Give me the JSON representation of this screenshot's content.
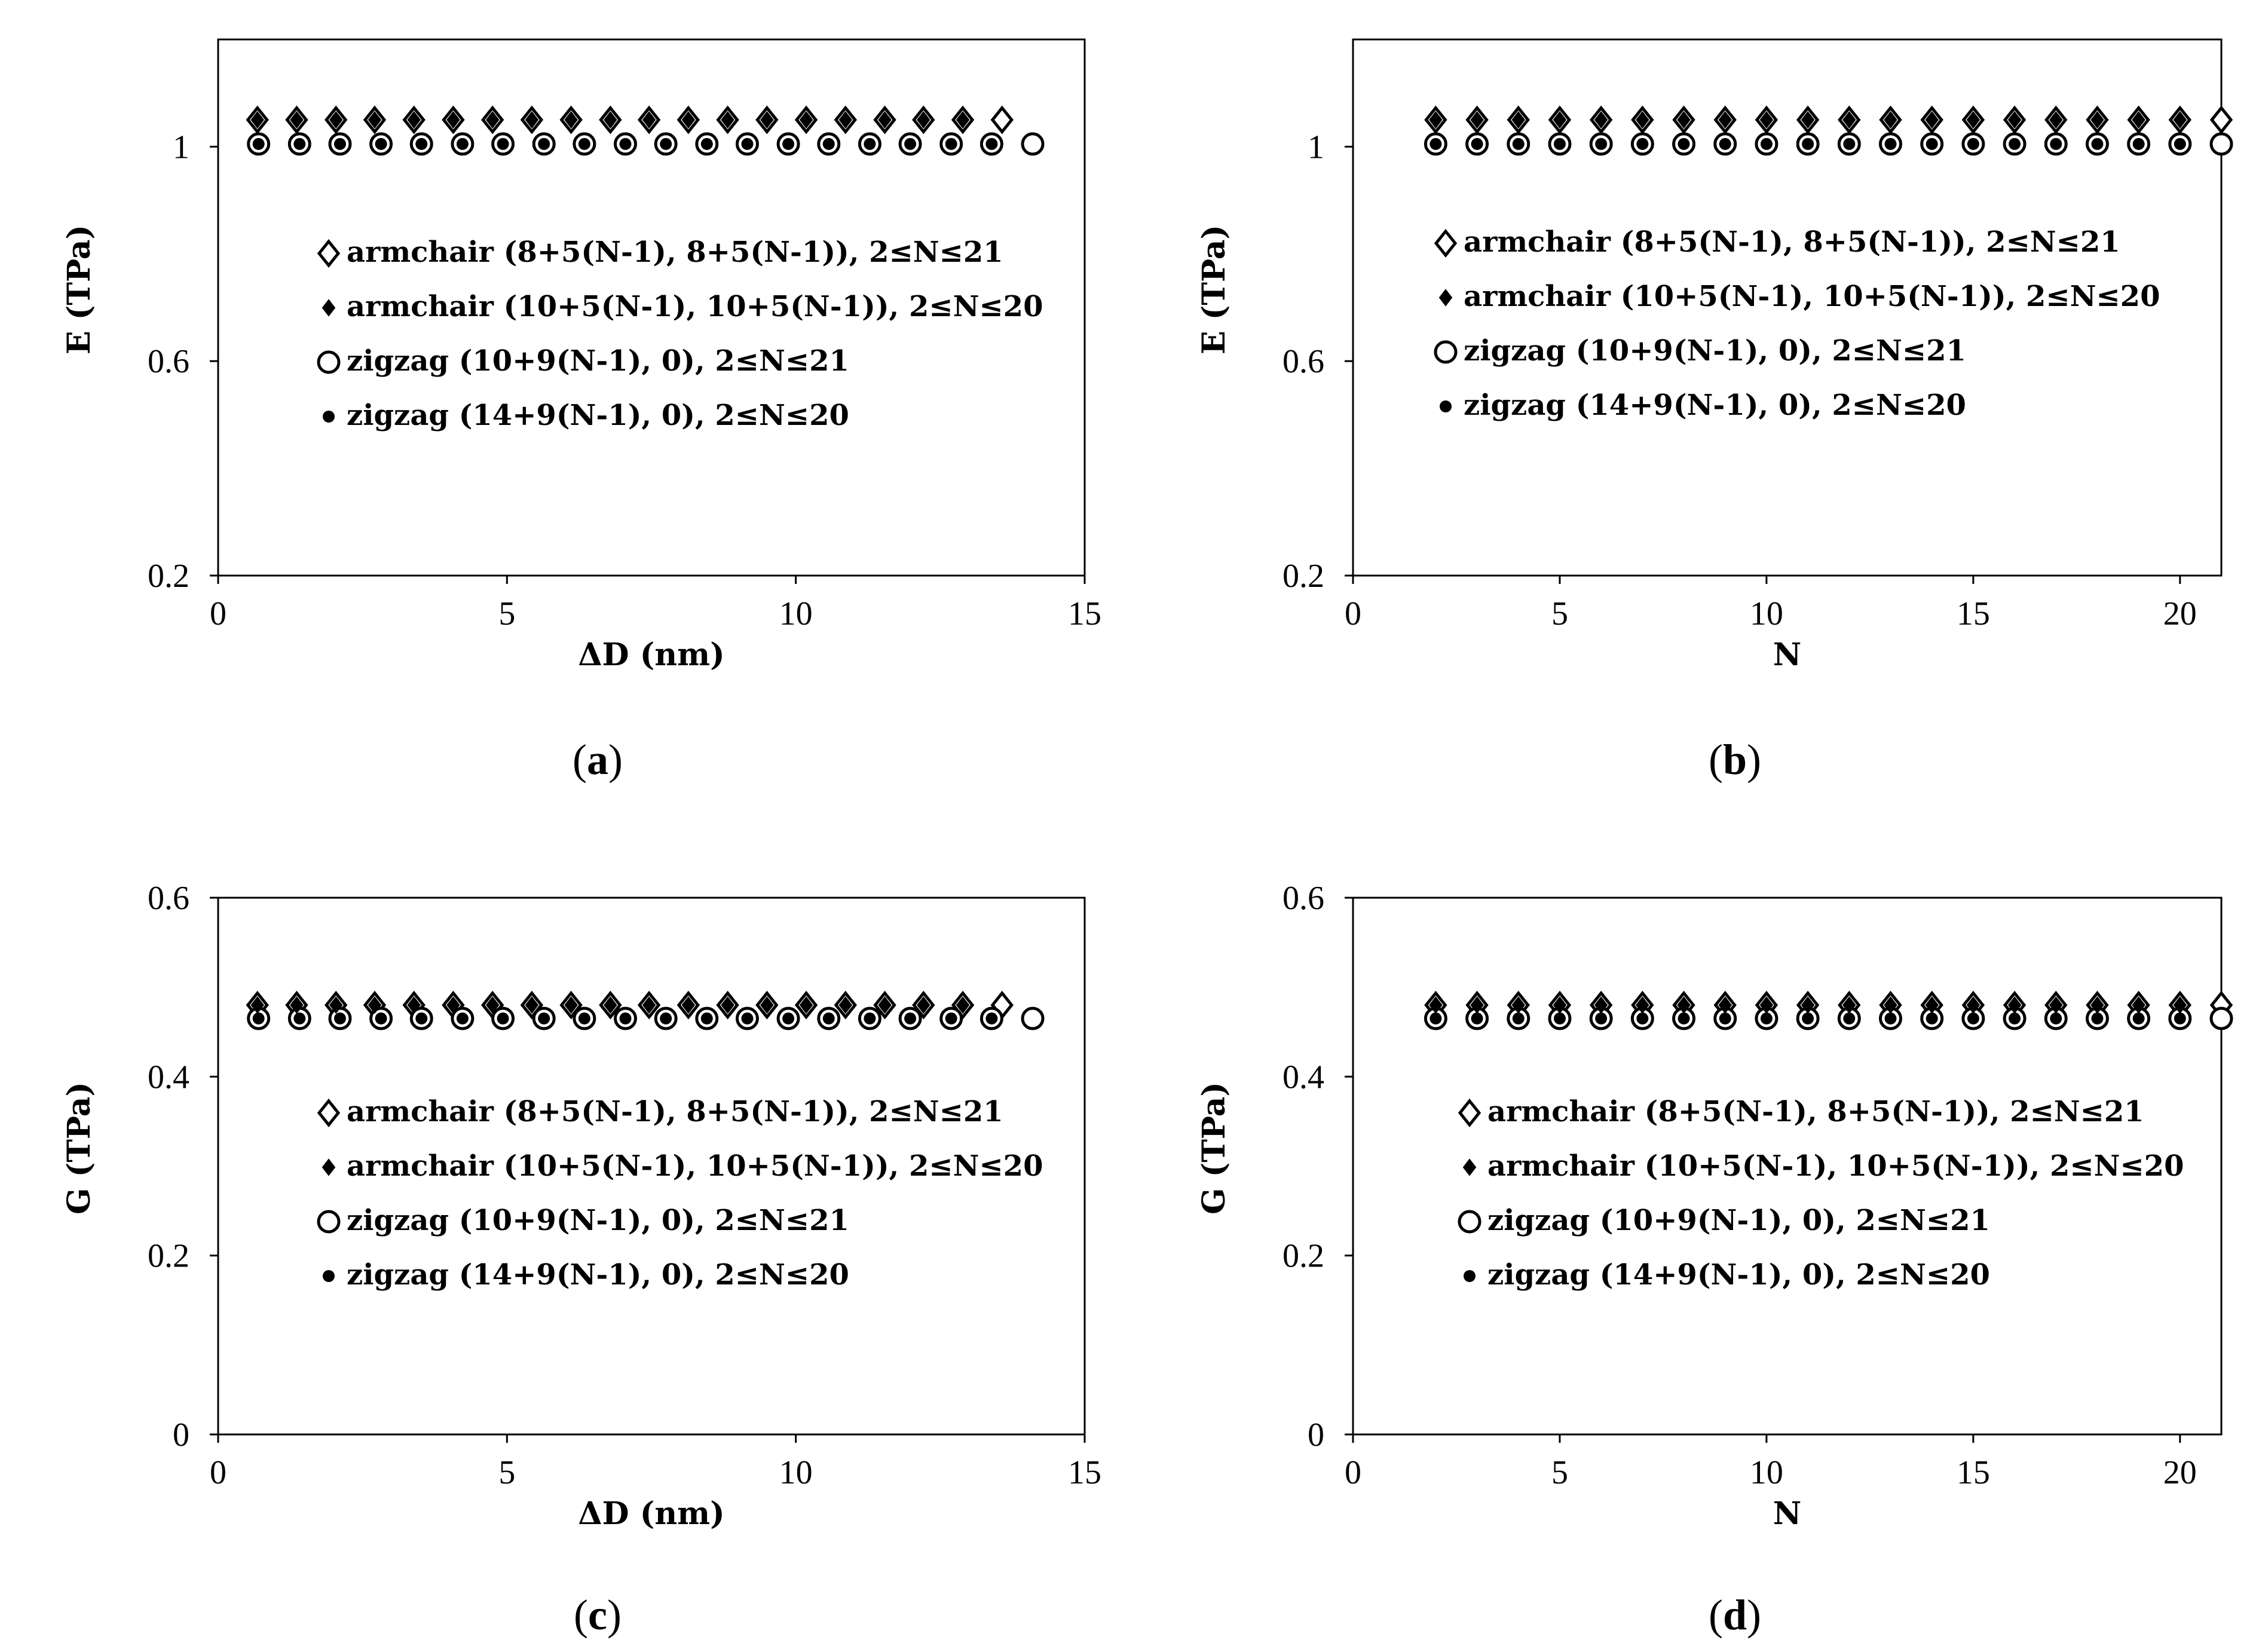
{
  "captions": [
    "(a)",
    "(b)",
    "(c)",
    "(d)"
  ],
  "chart_data": [
    {
      "id": "a",
      "type": "scatter",
      "xlabel": "ΔD (nm)",
      "ylabel": "E (TPa)",
      "xlim": [
        0,
        15
      ],
      "ylim": [
        0.2,
        1.2
      ],
      "xticks": [
        0,
        5,
        10,
        15
      ],
      "yticks": [
        0.2,
        0.6,
        1
      ],
      "grid": false,
      "legend_position": "center-left",
      "series": [
        {
          "name": "armchair (8+5(N-1), 8+5(N-1)), 2≤N≤21",
          "marker": "diamond-open",
          "x": [
            0.68,
            1.36,
            2.04,
            2.71,
            3.39,
            4.07,
            4.75,
            5.43,
            6.11,
            6.79,
            7.46,
            8.14,
            8.82,
            9.5,
            10.18,
            10.86,
            11.54,
            12.21,
            12.89,
            13.57
          ],
          "y": [
            1.05,
            1.05,
            1.05,
            1.05,
            1.05,
            1.05,
            1.05,
            1.05,
            1.05,
            1.05,
            1.05,
            1.05,
            1.05,
            1.05,
            1.05,
            1.05,
            1.05,
            1.05,
            1.05,
            1.05
          ]
        },
        {
          "name": "armchair (10+5(N-1), 10+5(N-1)), 2≤N≤20",
          "marker": "diamond-filled",
          "x": [
            0.68,
            1.36,
            2.04,
            2.71,
            3.39,
            4.07,
            4.75,
            5.43,
            6.11,
            6.79,
            7.46,
            8.14,
            8.82,
            9.5,
            10.18,
            10.86,
            11.54,
            12.21,
            12.89
          ],
          "y": [
            1.05,
            1.05,
            1.05,
            1.05,
            1.05,
            1.05,
            1.05,
            1.05,
            1.05,
            1.05,
            1.05,
            1.05,
            1.05,
            1.05,
            1.05,
            1.05,
            1.05,
            1.05,
            1.05
          ]
        },
        {
          "name": "zigzag (10+9(N-1), 0), 2≤N≤21",
          "marker": "circle-open",
          "x": [
            0.7,
            1.41,
            2.11,
            2.82,
            3.52,
            4.23,
            4.93,
            5.64,
            6.34,
            7.05,
            7.75,
            8.46,
            9.16,
            9.87,
            10.57,
            11.28,
            11.98,
            12.69,
            13.39,
            14.1
          ],
          "y": [
            1.005,
            1.005,
            1.005,
            1.005,
            1.005,
            1.005,
            1.005,
            1.005,
            1.005,
            1.005,
            1.005,
            1.005,
            1.005,
            1.005,
            1.005,
            1.005,
            1.005,
            1.005,
            1.005,
            1.005
          ]
        },
        {
          "name": "zigzag (14+9(N-1), 0), 2≤N≤20",
          "marker": "circle-filled",
          "x": [
            0.7,
            1.41,
            2.11,
            2.82,
            3.52,
            4.23,
            4.93,
            5.64,
            6.34,
            7.05,
            7.75,
            8.46,
            9.16,
            9.87,
            10.57,
            11.28,
            11.98,
            12.69,
            13.39
          ],
          "y": [
            1.005,
            1.005,
            1.005,
            1.005,
            1.005,
            1.005,
            1.005,
            1.005,
            1.005,
            1.005,
            1.005,
            1.005,
            1.005,
            1.005,
            1.005,
            1.005,
            1.005,
            1.005,
            1.005
          ]
        }
      ]
    },
    {
      "id": "b",
      "type": "scatter",
      "xlabel": "N",
      "ylabel": "E (TPa)",
      "xlim": [
        0,
        21
      ],
      "ylim": [
        0.2,
        1.2
      ],
      "xticks": [
        0,
        5,
        10,
        15,
        20
      ],
      "yticks": [
        0.2,
        0.6,
        1
      ],
      "grid": false,
      "legend_position": "center-left",
      "series": [
        {
          "name": "armchair (8+5(N-1), 8+5(N-1)), 2≤N≤21",
          "marker": "diamond-open",
          "x": [
            2,
            3,
            4,
            5,
            6,
            7,
            8,
            9,
            10,
            11,
            12,
            13,
            14,
            15,
            16,
            17,
            18,
            19,
            20,
            21
          ],
          "y": [
            1.05,
            1.05,
            1.05,
            1.05,
            1.05,
            1.05,
            1.05,
            1.05,
            1.05,
            1.05,
            1.05,
            1.05,
            1.05,
            1.05,
            1.05,
            1.05,
            1.05,
            1.05,
            1.05,
            1.05
          ]
        },
        {
          "name": "armchair (10+5(N-1), 10+5(N-1)), 2≤N≤20",
          "marker": "diamond-filled",
          "x": [
            2,
            3,
            4,
            5,
            6,
            7,
            8,
            9,
            10,
            11,
            12,
            13,
            14,
            15,
            16,
            17,
            18,
            19,
            20
          ],
          "y": [
            1.05,
            1.05,
            1.05,
            1.05,
            1.05,
            1.05,
            1.05,
            1.05,
            1.05,
            1.05,
            1.05,
            1.05,
            1.05,
            1.05,
            1.05,
            1.05,
            1.05,
            1.05,
            1.05
          ]
        },
        {
          "name": "zigzag (10+9(N-1), 0), 2≤N≤21",
          "marker": "circle-open",
          "x": [
            2,
            3,
            4,
            5,
            6,
            7,
            8,
            9,
            10,
            11,
            12,
            13,
            14,
            15,
            16,
            17,
            18,
            19,
            20,
            21
          ],
          "y": [
            1.005,
            1.005,
            1.005,
            1.005,
            1.005,
            1.005,
            1.005,
            1.005,
            1.005,
            1.005,
            1.005,
            1.005,
            1.005,
            1.005,
            1.005,
            1.005,
            1.005,
            1.005,
            1.005,
            1.005
          ]
        },
        {
          "name": "zigzag (14+9(N-1), 0), 2≤N≤20",
          "marker": "circle-filled",
          "x": [
            2,
            3,
            4,
            5,
            6,
            7,
            8,
            9,
            10,
            11,
            12,
            13,
            14,
            15,
            16,
            17,
            18,
            19,
            20
          ],
          "y": [
            1.005,
            1.005,
            1.005,
            1.005,
            1.005,
            1.005,
            1.005,
            1.005,
            1.005,
            1.005,
            1.005,
            1.005,
            1.005,
            1.005,
            1.005,
            1.005,
            1.005,
            1.005,
            1.005
          ]
        }
      ]
    },
    {
      "id": "c",
      "type": "scatter",
      "xlabel": "ΔD (nm)",
      "ylabel": "G (TPa)",
      "xlim": [
        0,
        15
      ],
      "ylim": [
        0,
        0.6
      ],
      "xticks": [
        0,
        5,
        10,
        15
      ],
      "yticks": [
        0,
        0.2,
        0.4,
        0.6
      ],
      "grid": false,
      "legend_position": "center-left",
      "series": [
        {
          "name": "armchair (8+5(N-1), 8+5(N-1)), 2≤N≤21",
          "marker": "diamond-open",
          "x": [
            0.68,
            1.36,
            2.04,
            2.71,
            3.39,
            4.07,
            4.75,
            5.43,
            6.11,
            6.79,
            7.46,
            8.14,
            8.82,
            9.5,
            10.18,
            10.86,
            11.54,
            12.21,
            12.89,
            13.57
          ],
          "y": [
            0.48,
            0.48,
            0.48,
            0.48,
            0.48,
            0.48,
            0.48,
            0.48,
            0.48,
            0.48,
            0.48,
            0.48,
            0.48,
            0.48,
            0.48,
            0.48,
            0.48,
            0.48,
            0.48,
            0.48
          ]
        },
        {
          "name": "armchair (10+5(N-1), 10+5(N-1)), 2≤N≤20",
          "marker": "diamond-filled",
          "x": [
            0.68,
            1.36,
            2.04,
            2.71,
            3.39,
            4.07,
            4.75,
            5.43,
            6.11,
            6.79,
            7.46,
            8.14,
            8.82,
            9.5,
            10.18,
            10.86,
            11.54,
            12.21,
            12.89
          ],
          "y": [
            0.48,
            0.48,
            0.48,
            0.48,
            0.48,
            0.48,
            0.48,
            0.48,
            0.48,
            0.48,
            0.48,
            0.48,
            0.48,
            0.48,
            0.48,
            0.48,
            0.48,
            0.48,
            0.48
          ]
        },
        {
          "name": "zigzag (10+9(N-1), 0), 2≤N≤21",
          "marker": "circle-open",
          "x": [
            0.7,
            1.41,
            2.11,
            2.82,
            3.52,
            4.23,
            4.93,
            5.64,
            6.34,
            7.05,
            7.75,
            8.46,
            9.16,
            9.87,
            10.57,
            11.28,
            11.98,
            12.69,
            13.39,
            14.1
          ],
          "y": [
            0.465,
            0.465,
            0.465,
            0.465,
            0.465,
            0.465,
            0.465,
            0.465,
            0.465,
            0.465,
            0.465,
            0.465,
            0.465,
            0.465,
            0.465,
            0.465,
            0.465,
            0.465,
            0.465,
            0.465
          ]
        },
        {
          "name": "zigzag (14+9(N-1), 0), 2≤N≤20",
          "marker": "circle-filled",
          "x": [
            0.7,
            1.41,
            2.11,
            2.82,
            3.52,
            4.23,
            4.93,
            5.64,
            6.34,
            7.05,
            7.75,
            8.46,
            9.16,
            9.87,
            10.57,
            11.28,
            11.98,
            12.69,
            13.39
          ],
          "y": [
            0.465,
            0.465,
            0.465,
            0.465,
            0.465,
            0.465,
            0.465,
            0.465,
            0.465,
            0.465,
            0.465,
            0.465,
            0.465,
            0.465,
            0.465,
            0.465,
            0.465,
            0.465,
            0.465
          ]
        }
      ]
    },
    {
      "id": "d",
      "type": "scatter",
      "xlabel": "N",
      "ylabel": "G (TPa)",
      "xlim": [
        0,
        21
      ],
      "ylim": [
        0,
        0.6
      ],
      "xticks": [
        0,
        5,
        10,
        15,
        20
      ],
      "yticks": [
        0,
        0.2,
        0.4,
        0.6
      ],
      "grid": false,
      "legend_position": "center-left",
      "series": [
        {
          "name": "armchair (8+5(N-1), 8+5(N-1)), 2≤N≤21",
          "marker": "diamond-open",
          "x": [
            2,
            3,
            4,
            5,
            6,
            7,
            8,
            9,
            10,
            11,
            12,
            13,
            14,
            15,
            16,
            17,
            18,
            19,
            20,
            21
          ],
          "y": [
            0.48,
            0.48,
            0.48,
            0.48,
            0.48,
            0.48,
            0.48,
            0.48,
            0.48,
            0.48,
            0.48,
            0.48,
            0.48,
            0.48,
            0.48,
            0.48,
            0.48,
            0.48,
            0.48,
            0.48
          ]
        },
        {
          "name": "armchair (10+5(N-1), 10+5(N-1)), 2≤N≤20",
          "marker": "diamond-filled",
          "x": [
            2,
            3,
            4,
            5,
            6,
            7,
            8,
            9,
            10,
            11,
            12,
            13,
            14,
            15,
            16,
            17,
            18,
            19,
            20
          ],
          "y": [
            0.48,
            0.48,
            0.48,
            0.48,
            0.48,
            0.48,
            0.48,
            0.48,
            0.48,
            0.48,
            0.48,
            0.48,
            0.48,
            0.48,
            0.48,
            0.48,
            0.48,
            0.48,
            0.48
          ]
        },
        {
          "name": "zigzag (10+9(N-1), 0), 2≤N≤21",
          "marker": "circle-open",
          "x": [
            2,
            3,
            4,
            5,
            6,
            7,
            8,
            9,
            10,
            11,
            12,
            13,
            14,
            15,
            16,
            17,
            18,
            19,
            20,
            21
          ],
          "y": [
            0.465,
            0.465,
            0.465,
            0.465,
            0.465,
            0.465,
            0.465,
            0.465,
            0.465,
            0.465,
            0.465,
            0.465,
            0.465,
            0.465,
            0.465,
            0.465,
            0.465,
            0.465,
            0.465,
            0.465
          ]
        },
        {
          "name": "zigzag (14+9(N-1), 0), 2≤N≤20",
          "marker": "circle-filled",
          "x": [
            2,
            3,
            4,
            5,
            6,
            7,
            8,
            9,
            10,
            11,
            12,
            13,
            14,
            15,
            16,
            17,
            18,
            19,
            20
          ],
          "y": [
            0.465,
            0.465,
            0.465,
            0.465,
            0.465,
            0.465,
            0.465,
            0.465,
            0.465,
            0.465,
            0.465,
            0.465,
            0.465,
            0.465,
            0.465,
            0.465,
            0.465,
            0.465,
            0.465
          ]
        }
      ]
    }
  ]
}
